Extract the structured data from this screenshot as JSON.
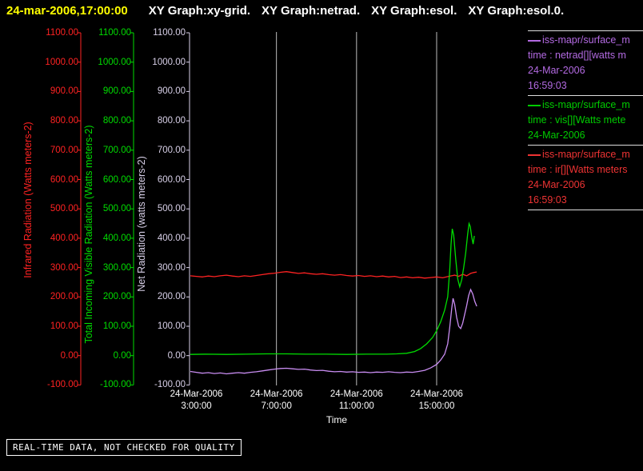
{
  "header": {
    "timestamp": "24-mar-2006,17:00:00",
    "titles": [
      "XY Graph:xy-grid.",
      "XY Graph:netrad.",
      "XY Graph:esol.",
      "XY Graph:esol.0."
    ]
  },
  "colors": {
    "timestamp": "#ffff00",
    "title": "#ffffff",
    "grid": "#bdbdbd",
    "separator": "#dddddd",
    "tick_text": "#ffffff"
  },
  "axes": {
    "y_ticks": [
      "1100.00",
      "1000.00",
      "900.00",
      "800.00",
      "700.00",
      "600.00",
      "500.00",
      "400.00",
      "300.00",
      "200.00",
      "100.00",
      "0.00",
      "-100.00"
    ],
    "left": [
      {
        "id": "ir",
        "title": "Infrared Radiation (Watts meters-2)",
        "color": "#ff2222"
      },
      {
        "id": "vis",
        "title": "Total Incoming Visible Radiation (Watts meters-2)",
        "color": "#00dd00"
      },
      {
        "id": "net",
        "title": "Net Radiation (watts meters-2)",
        "color": "#d8d0e8"
      }
    ],
    "x": {
      "label": "Time",
      "ticks": [
        {
          "date": "24-Mar-2006",
          "time": "3:00:00"
        },
        {
          "date": "24-Mar-2006",
          "time": "7:00:00"
        },
        {
          "date": "24-Mar-2006",
          "time": "11:00:00"
        },
        {
          "date": "24-Mar-2006",
          "time": "15:00:00"
        }
      ]
    }
  },
  "chart_data": {
    "type": "line",
    "title": "",
    "xlabel": "Time",
    "x_unit": "hours of day on 24-Mar-2006",
    "ylim": [
      -100,
      1100
    ],
    "y_tick_step": 100,
    "xlim_hours": [
      2.7,
      17.0
    ],
    "x_tick_hours": [
      3,
      7,
      11,
      15
    ],
    "grid_hours": [
      7,
      11,
      15
    ],
    "grid": "vertical-only",
    "legend_position": "right",
    "series": [
      {
        "name": "ir",
        "label": "Infrared Radiation (Watts meters-2)",
        "color": "#ff2222",
        "points": [
          [
            2.7,
            272
          ],
          [
            3,
            270
          ],
          [
            3.3,
            268
          ],
          [
            3.6,
            271
          ],
          [
            3.9,
            269
          ],
          [
            4.2,
            272
          ],
          [
            4.5,
            274
          ],
          [
            4.8,
            271
          ],
          [
            5.1,
            269
          ],
          [
            5.4,
            272
          ],
          [
            5.7,
            270
          ],
          [
            6,
            273
          ],
          [
            6.3,
            276
          ],
          [
            6.6,
            279
          ],
          [
            6.9,
            281
          ],
          [
            7.2,
            284
          ],
          [
            7.5,
            286
          ],
          [
            7.8,
            283
          ],
          [
            8.1,
            280
          ],
          [
            8.4,
            282
          ],
          [
            8.7,
            279
          ],
          [
            9,
            277
          ],
          [
            9.3,
            279
          ],
          [
            9.6,
            276
          ],
          [
            9.9,
            274
          ],
          [
            10.2,
            276
          ],
          [
            10.5,
            273
          ],
          [
            10.8,
            271
          ],
          [
            11.1,
            273
          ],
          [
            11.4,
            270
          ],
          [
            11.7,
            272
          ],
          [
            12,
            269
          ],
          [
            12.3,
            271
          ],
          [
            12.6,
            268
          ],
          [
            12.9,
            270
          ],
          [
            13.2,
            266
          ],
          [
            13.5,
            268
          ],
          [
            13.8,
            265
          ],
          [
            14.1,
            267
          ],
          [
            14.4,
            264
          ],
          [
            14.7,
            266
          ],
          [
            15,
            268
          ],
          [
            15.3,
            265
          ],
          [
            15.6,
            270
          ],
          [
            15.9,
            274
          ],
          [
            16.1,
            270
          ],
          [
            16.3,
            277
          ],
          [
            16.5,
            272
          ],
          [
            16.7,
            280
          ],
          [
            16.85,
            283
          ],
          [
            17,
            285
          ]
        ]
      },
      {
        "name": "vis",
        "label": "Total Incoming Visible Radiation (Watts meters-2)",
        "color": "#00dd00",
        "points": [
          [
            2.7,
            4
          ],
          [
            3.5,
            5
          ],
          [
            4.5,
            4
          ],
          [
            5.5,
            5
          ],
          [
            6.5,
            6
          ],
          [
            7.5,
            6
          ],
          [
            8.5,
            5
          ],
          [
            9.5,
            5
          ],
          [
            10.5,
            4
          ],
          [
            11.5,
            5
          ],
          [
            12.5,
            5
          ],
          [
            13,
            6
          ],
          [
            13.5,
            8
          ],
          [
            13.9,
            14
          ],
          [
            14.2,
            24
          ],
          [
            14.5,
            40
          ],
          [
            14.8,
            62
          ],
          [
            15,
            85
          ],
          [
            15.2,
            115
          ],
          [
            15.4,
            155
          ],
          [
            15.55,
            200
          ],
          [
            15.65,
            290
          ],
          [
            15.72,
            380
          ],
          [
            15.78,
            432
          ],
          [
            15.85,
            410
          ],
          [
            15.95,
            330
          ],
          [
            16.05,
            262
          ],
          [
            16.15,
            235
          ],
          [
            16.25,
            258
          ],
          [
            16.35,
            300
          ],
          [
            16.45,
            350
          ],
          [
            16.55,
            415
          ],
          [
            16.62,
            450
          ],
          [
            16.68,
            440
          ],
          [
            16.75,
            405
          ],
          [
            16.82,
            380
          ],
          [
            16.88,
            408
          ]
        ]
      },
      {
        "name": "netrad",
        "label": "Net Radiation (watts meters-2)",
        "color": "#c98df2",
        "points": [
          [
            2.7,
            -54
          ],
          [
            3,
            -57
          ],
          [
            3.3,
            -60
          ],
          [
            3.6,
            -58
          ],
          [
            3.9,
            -61
          ],
          [
            4.2,
            -59
          ],
          [
            4.5,
            -62
          ],
          [
            4.8,
            -60
          ],
          [
            5.1,
            -58
          ],
          [
            5.4,
            -60
          ],
          [
            5.7,
            -57
          ],
          [
            6,
            -55
          ],
          [
            6.3,
            -52
          ],
          [
            6.6,
            -49
          ],
          [
            6.9,
            -46
          ],
          [
            7.2,
            -44
          ],
          [
            7.5,
            -43
          ],
          [
            7.8,
            -45
          ],
          [
            8.1,
            -47
          ],
          [
            8.4,
            -46
          ],
          [
            8.7,
            -49
          ],
          [
            9,
            -51
          ],
          [
            9.3,
            -50
          ],
          [
            9.6,
            -53
          ],
          [
            9.9,
            -55
          ],
          [
            10.2,
            -54
          ],
          [
            10.5,
            -56
          ],
          [
            10.8,
            -55
          ],
          [
            11.1,
            -57
          ],
          [
            11.4,
            -56
          ],
          [
            11.7,
            -58
          ],
          [
            12,
            -56
          ],
          [
            12.3,
            -57
          ],
          [
            12.6,
            -55
          ],
          [
            12.9,
            -57
          ],
          [
            13.2,
            -58
          ],
          [
            13.5,
            -56
          ],
          [
            13.8,
            -57
          ],
          [
            14.1,
            -54
          ],
          [
            14.4,
            -50
          ],
          [
            14.7,
            -42
          ],
          [
            15,
            -30
          ],
          [
            15.2,
            -15
          ],
          [
            15.4,
            5
          ],
          [
            15.55,
            40
          ],
          [
            15.65,
            95
          ],
          [
            15.75,
            160
          ],
          [
            15.82,
            195
          ],
          [
            15.9,
            175
          ],
          [
            16,
            130
          ],
          [
            16.1,
            100
          ],
          [
            16.2,
            92
          ],
          [
            16.3,
            110
          ],
          [
            16.4,
            140
          ],
          [
            16.5,
            170
          ],
          [
            16.6,
            205
          ],
          [
            16.7,
            225
          ],
          [
            16.8,
            210
          ],
          [
            16.9,
            185
          ],
          [
            17,
            168
          ]
        ]
      }
    ]
  },
  "legend": {
    "entries": [
      {
        "source": "iss-mapr/surface_m",
        "variable": "time : netrad[][watts m",
        "date": "24-Mar-2006",
        "time": "16:59:03",
        "color": "#b36ae2"
      },
      {
        "source": "iss-mapr/surface_m",
        "variable": "time : vis[][Watts mete",
        "date": "24-Mar-2006",
        "time": "",
        "color": "#00cc00"
      },
      {
        "source": "iss-mapr/surface_m",
        "variable": "time : ir[][Watts meters",
        "date": "24-Mar-2006",
        "time": "16:59:03",
        "color": "#ee3333"
      }
    ]
  },
  "footer": {
    "notice": "REAL-TIME DATA, NOT CHECKED FOR QUALITY"
  }
}
